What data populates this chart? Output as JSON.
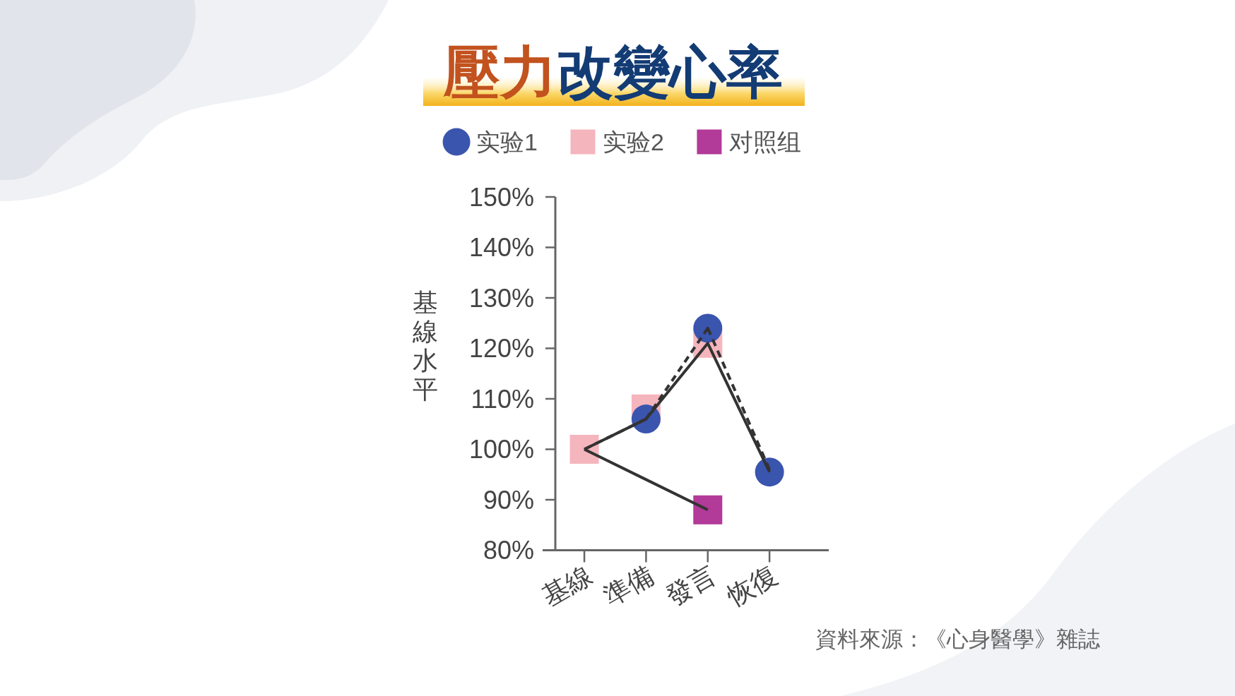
{
  "chart_data": {
    "type": "line",
    "title": "壓力改變心率",
    "ylabel": "基線水平",
    "categories": [
      "基線",
      "準備",
      "發言",
      "恢復"
    ],
    "ylim": [
      80,
      150
    ],
    "yticks": [
      {
        "value": 80,
        "label": "80%"
      },
      {
        "value": 90,
        "label": "90%"
      },
      {
        "value": 100,
        "label": "100%"
      },
      {
        "value": 110,
        "label": "110%"
      },
      {
        "value": 120,
        "label": "120%"
      },
      {
        "value": 130,
        "label": "130%"
      },
      {
        "value": 140,
        "label": "140%"
      },
      {
        "value": 150,
        "label": "150%"
      }
    ],
    "legend": "top",
    "series": [
      {
        "type": "line",
        "color": "#333333",
        "line_style": "solid",
        "marker": "none",
        "values": [
          100,
          106,
          121,
          95.5
        ]
      },
      {
        "type": "line",
        "color": "#333333",
        "line_style": "dashed",
        "marker": "none",
        "values": [
          100,
          106,
          124,
          96
        ]
      },
      {
        "type": "line",
        "color": "#333333",
        "line_style": "solid",
        "marker": "none",
        "values": [
          100,
          94,
          88,
          null
        ]
      },
      {
        "type": "scatter",
        "name": "实验1",
        "color": "#3a55ae",
        "marker": "circle",
        "values": [
          null,
          106,
          124,
          95.5
        ]
      },
      {
        "type": "scatter",
        "name": "实验2",
        "color": "#f5b5bd",
        "marker": "square",
        "values": [
          100,
          108,
          121,
          null
        ]
      },
      {
        "type": "scatter",
        "name": "对照组",
        "color": "#b23a98",
        "marker": "square",
        "values": [
          null,
          null,
          88,
          null
        ]
      }
    ],
    "annotations": [
      "資料來源：《心身醫學》雜誌"
    ]
  }
}
